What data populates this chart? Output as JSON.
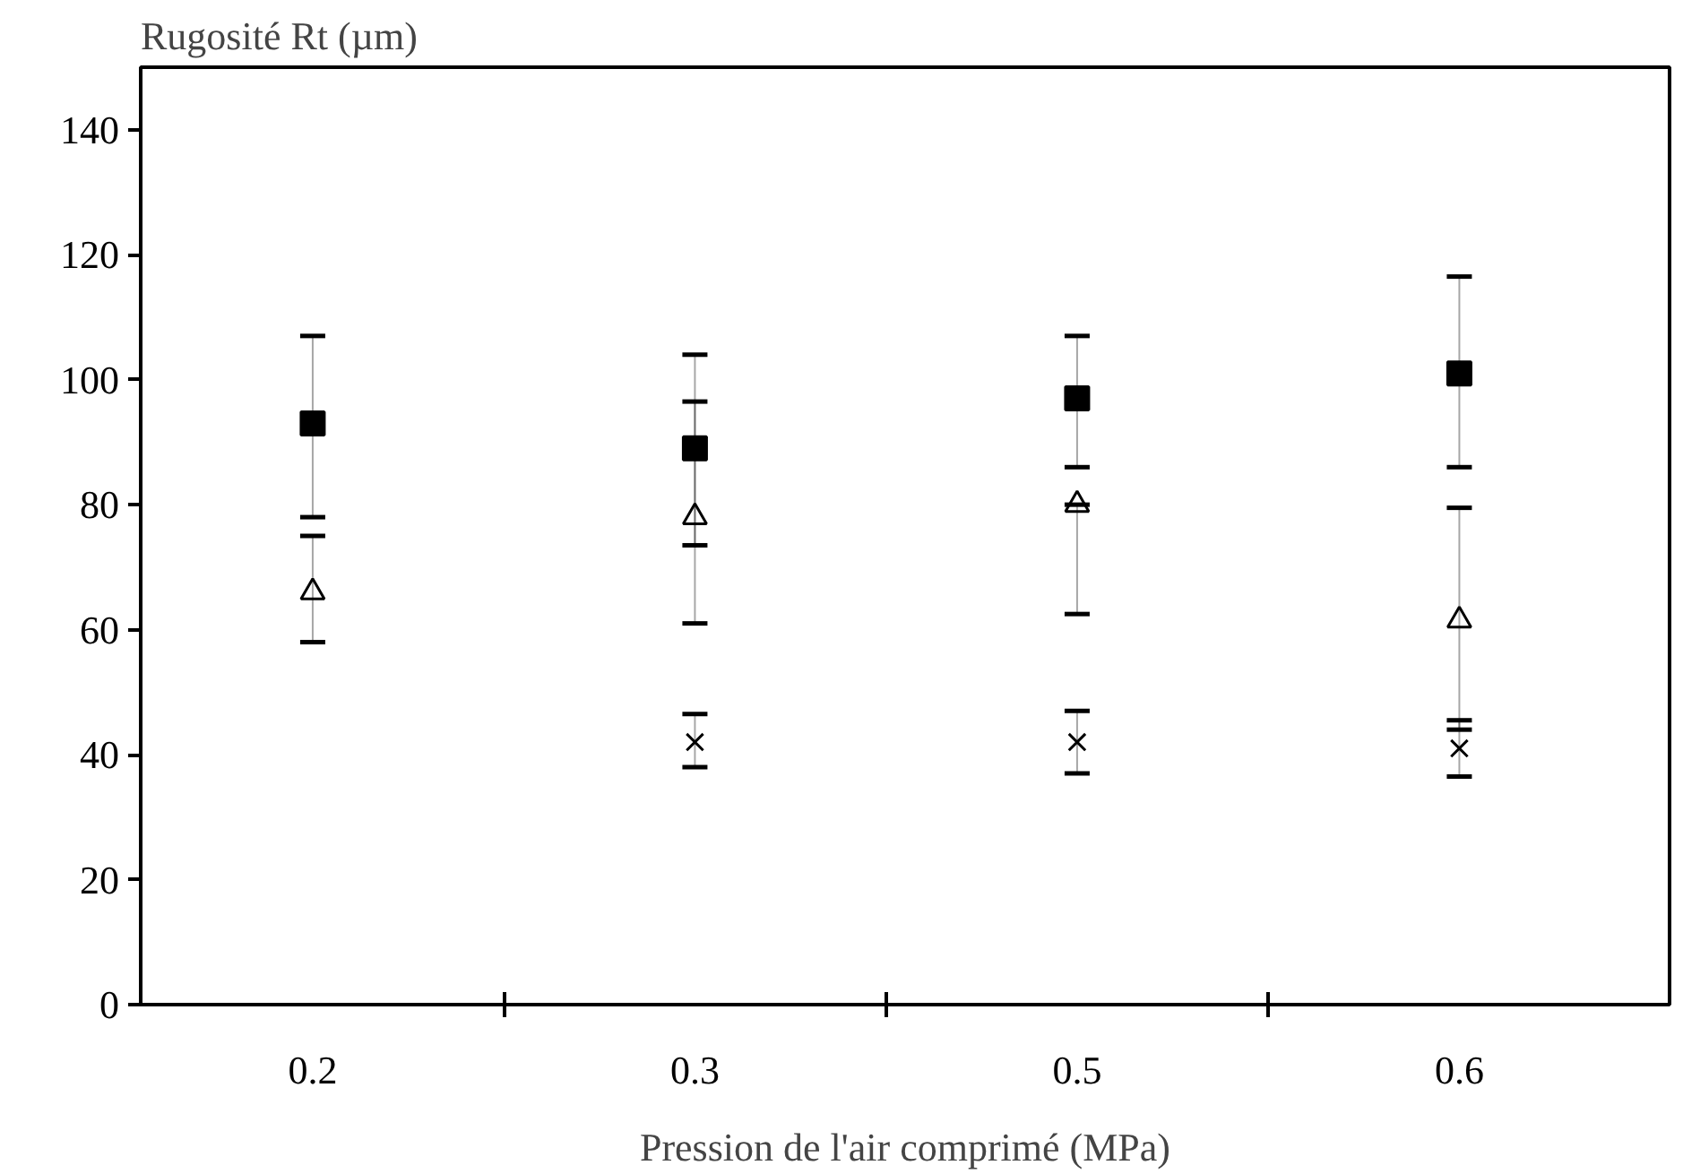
{
  "chart_data": {
    "type": "scatter",
    "xlabel": "Pression de l'air comprimé (MPa)",
    "ylabel": "Rugosité Rt (µm)",
    "categories": [
      "0.2",
      "0.3",
      "0.5",
      "0.6"
    ],
    "ylim": [
      0,
      150
    ],
    "yticks": [
      0,
      20,
      40,
      60,
      80,
      100,
      120,
      140
    ],
    "grid": false,
    "series": [
      {
        "color": "#000000",
        "marker": "square",
        "values": [
          93,
          89,
          97,
          101
        ],
        "errors": [
          [
            78,
            107
          ],
          [
            73.5,
            104
          ],
          [
            86,
            107
          ],
          [
            86,
            116.5
          ]
        ]
      },
      {
        "color": "#000000",
        "marker": "triangle",
        "values": [
          66,
          78,
          80,
          61.5
        ],
        "errors": [
          [
            58,
            75
          ],
          [
            61,
            96.5
          ],
          [
            62.5,
            80
          ],
          [
            44,
            79.5
          ]
        ]
      },
      {
        "color": "#000000",
        "marker": "cross",
        "values": [
          null,
          42,
          42,
          41
        ],
        "errors": [
          null,
          [
            38,
            46.5
          ],
          [
            37,
            47
          ],
          [
            36.5,
            45.5
          ]
        ]
      }
    ]
  }
}
